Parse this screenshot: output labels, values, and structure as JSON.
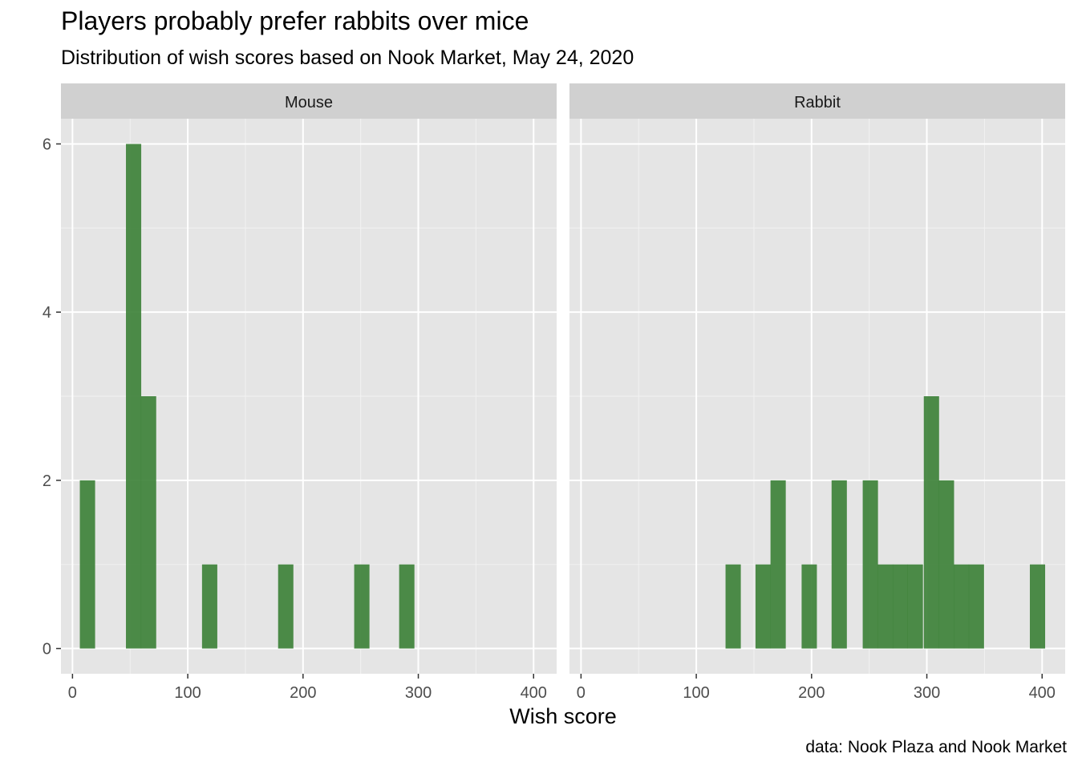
{
  "chart": {
    "title": "Players probably prefer rabbits over mice",
    "subtitle": "Distribution of wish scores based on Nook Market, May 24, 2020",
    "caption": "data: Nook Plaza and Nook Market",
    "xlabel": "Wish score",
    "ylabel": ""
  },
  "chart_data": {
    "type": "bar",
    "facets": [
      "Mouse",
      "Rabbit"
    ],
    "title": "Players probably prefer rabbits over mice",
    "subtitle": "Distribution of wish scores based on Nook Market, May 24, 2020",
    "xlabel": "Wish score",
    "ylabel": "",
    "xlim": [
      -10,
      420
    ],
    "ylim": [
      -0.3,
      6.3
    ],
    "x_ticks": [
      0,
      100,
      200,
      300,
      400
    ],
    "y_ticks": [
      0,
      2,
      4,
      6
    ],
    "bin_width": 13.25,
    "fill_color": "#3a7f35",
    "panel_background": "#e5e5e5",
    "strip_background": "#d0d0d0",
    "grid": true,
    "series": [
      {
        "name": "Mouse",
        "bins": [
          {
            "x": 13,
            "count": 2
          },
          {
            "x": 53,
            "count": 6
          },
          {
            "x": 66,
            "count": 3
          },
          {
            "x": 119,
            "count": 1
          },
          {
            "x": 185,
            "count": 1
          },
          {
            "x": 251,
            "count": 1
          },
          {
            "x": 290,
            "count": 1
          }
        ]
      },
      {
        "name": "Rabbit",
        "bins": [
          {
            "x": 132,
            "count": 1
          },
          {
            "x": 158,
            "count": 1
          },
          {
            "x": 171,
            "count": 2
          },
          {
            "x": 198,
            "count": 1
          },
          {
            "x": 224,
            "count": 2
          },
          {
            "x": 251,
            "count": 2
          },
          {
            "x": 264,
            "count": 1
          },
          {
            "x": 277,
            "count": 1
          },
          {
            "x": 290,
            "count": 1
          },
          {
            "x": 304,
            "count": 3
          },
          {
            "x": 317,
            "count": 2
          },
          {
            "x": 330,
            "count": 1
          },
          {
            "x": 343,
            "count": 1
          },
          {
            "x": 396,
            "count": 1
          }
        ]
      }
    ]
  }
}
